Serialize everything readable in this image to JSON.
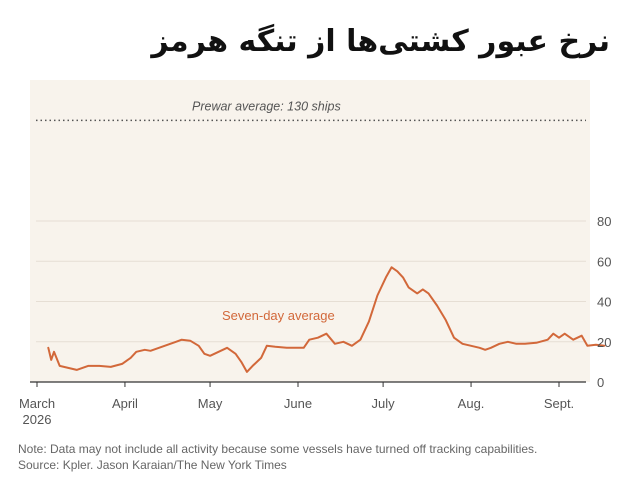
{
  "chart_data": {
    "type": "line",
    "title": "نرخ عبور کشتی‌ها از تنگه هرمز",
    "x_ticks": [
      {
        "date": "2026-03-01",
        "label": "March",
        "sublabel": "2026"
      },
      {
        "date": "2026-04-01",
        "label": "April",
        "sublabel": ""
      },
      {
        "date": "2026-05-01",
        "label": "May",
        "sublabel": ""
      },
      {
        "date": "2026-06-01",
        "label": "June",
        "sublabel": ""
      },
      {
        "date": "2026-07-01",
        "label": "July",
        "sublabel": ""
      },
      {
        "date": "2026-08-01",
        "label": "Aug.",
        "sublabel": ""
      },
      {
        "date": "2026-09-01",
        "label": "Sept.",
        "sublabel": ""
      }
    ],
    "x_range": [
      "2026-03-01",
      "2026-09-17"
    ],
    "y_ticks": [
      0,
      20,
      40,
      60,
      80
    ],
    "ylim": [
      0,
      150
    ],
    "reference_line": {
      "value": 130,
      "label": "Prewar average: 130 ships"
    },
    "series": [
      {
        "name": "Seven-day average",
        "color": "#d2683a",
        "points": [
          [
            "2026-03-05",
            17
          ],
          [
            "2026-03-06",
            11
          ],
          [
            "2026-03-07",
            15
          ],
          [
            "2026-03-09",
            8
          ],
          [
            "2026-03-12",
            7
          ],
          [
            "2026-03-15",
            6
          ],
          [
            "2026-03-19",
            8
          ],
          [
            "2026-03-23",
            8
          ],
          [
            "2026-03-27",
            7.5
          ],
          [
            "2026-03-31",
            9
          ],
          [
            "2026-04-03",
            12
          ],
          [
            "2026-04-05",
            15
          ],
          [
            "2026-04-08",
            16
          ],
          [
            "2026-04-10",
            15.5
          ],
          [
            "2026-04-13",
            17
          ],
          [
            "2026-04-17",
            19
          ],
          [
            "2026-04-19",
            20
          ],
          [
            "2026-04-21",
            21
          ],
          [
            "2026-04-24",
            20.5
          ],
          [
            "2026-04-27",
            18
          ],
          [
            "2026-04-29",
            14
          ],
          [
            "2026-05-01",
            13
          ],
          [
            "2026-05-04",
            15
          ],
          [
            "2026-05-07",
            17
          ],
          [
            "2026-05-10",
            14
          ],
          [
            "2026-05-12",
            10
          ],
          [
            "2026-05-14",
            5
          ],
          [
            "2026-05-16",
            8
          ],
          [
            "2026-05-19",
            12
          ],
          [
            "2026-05-21",
            18
          ],
          [
            "2026-05-24",
            17.5
          ],
          [
            "2026-05-28",
            17
          ],
          [
            "2026-05-31",
            17
          ],
          [
            "2026-06-03",
            17
          ],
          [
            "2026-06-05",
            21
          ],
          [
            "2026-06-08",
            22
          ],
          [
            "2026-06-11",
            24
          ],
          [
            "2026-06-14",
            19
          ],
          [
            "2026-06-17",
            20
          ],
          [
            "2026-06-20",
            18
          ],
          [
            "2026-06-23",
            21
          ],
          [
            "2026-06-26",
            30
          ],
          [
            "2026-06-29",
            43
          ],
          [
            "2026-07-02",
            52
          ],
          [
            "2026-07-04",
            57
          ],
          [
            "2026-07-06",
            55
          ],
          [
            "2026-07-08",
            52
          ],
          [
            "2026-07-10",
            47
          ],
          [
            "2026-07-13",
            44
          ],
          [
            "2026-07-15",
            46
          ],
          [
            "2026-07-17",
            44
          ],
          [
            "2026-07-20",
            38
          ],
          [
            "2026-07-23",
            31
          ],
          [
            "2026-07-26",
            22
          ],
          [
            "2026-07-29",
            19
          ],
          [
            "2026-08-01",
            18
          ],
          [
            "2026-08-04",
            17
          ],
          [
            "2026-08-06",
            16
          ],
          [
            "2026-08-08",
            17
          ],
          [
            "2026-08-11",
            19
          ],
          [
            "2026-08-14",
            20
          ],
          [
            "2026-08-17",
            19
          ],
          [
            "2026-08-20",
            19
          ],
          [
            "2026-08-24",
            19.5
          ],
          [
            "2026-08-28",
            21
          ],
          [
            "2026-08-30",
            24
          ],
          [
            "2026-09-01",
            22
          ],
          [
            "2026-09-03",
            24
          ],
          [
            "2026-09-06",
            21
          ],
          [
            "2026-09-09",
            23
          ],
          [
            "2026-09-11",
            18
          ],
          [
            "2026-09-14",
            18.5
          ],
          [
            "2026-09-17",
            18
          ]
        ]
      }
    ]
  },
  "note": "Note: Data may not include all activity because some vessels have turned off tracking capabilities.  Source: Kpler.  Jason Karaian/The New York Times"
}
